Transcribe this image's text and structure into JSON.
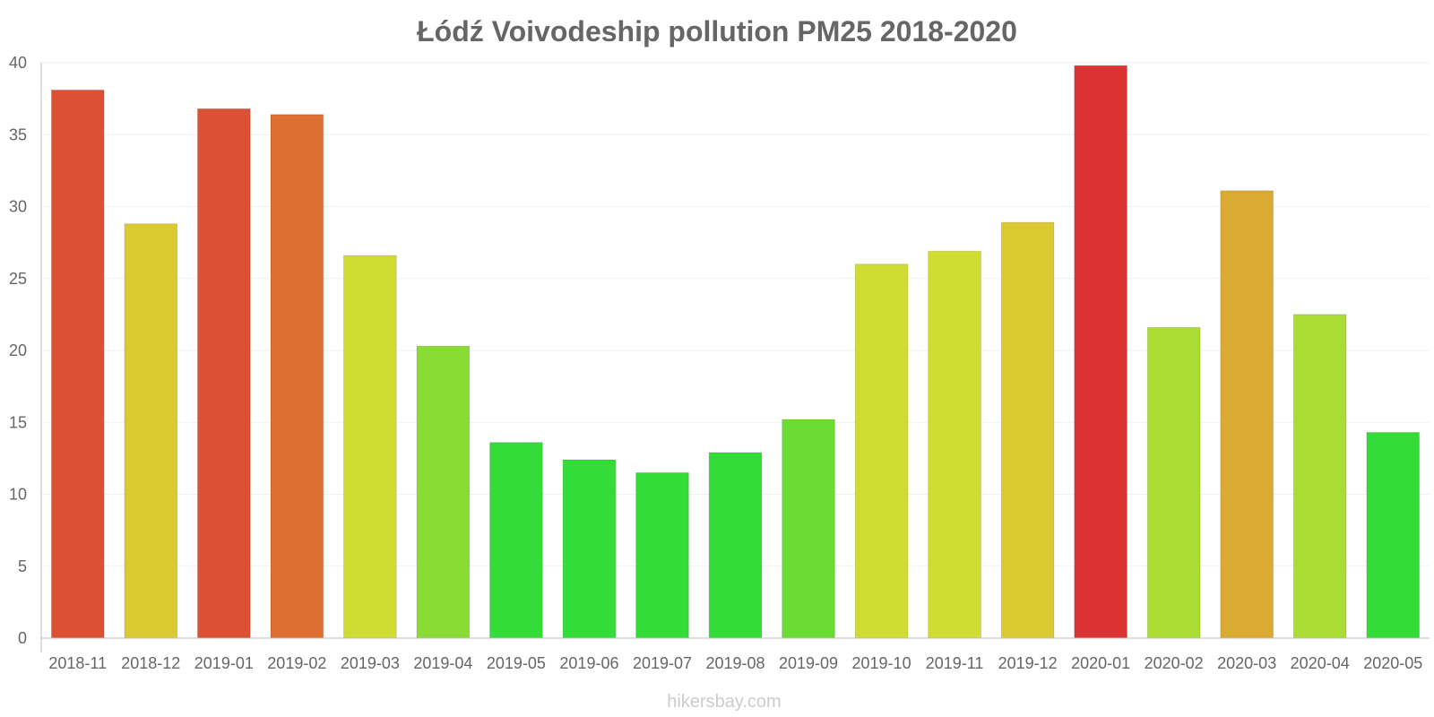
{
  "chart_data": {
    "type": "bar",
    "title": "Łódź Voivodeship pollution PM25 2018-2020",
    "xlabel": "",
    "ylabel": "",
    "ylim": [
      0,
      40
    ],
    "yticks": [
      "0",
      "5",
      "10",
      "15",
      "20",
      "25",
      "30",
      "35",
      "40"
    ],
    "categories": [
      "2018-11",
      "2018-12",
      "2019-01",
      "2019-02",
      "2019-03",
      "2019-04",
      "2019-05",
      "2019-06",
      "2019-07",
      "2019-08",
      "2019-09",
      "2019-10",
      "2019-11",
      "2019-12",
      "2020-01",
      "2020-02",
      "2020-03",
      "2020-04",
      "2020-05"
    ],
    "values": [
      38.1,
      28.8,
      36.8,
      36.4,
      26.6,
      20.3,
      13.6,
      12.4,
      11.5,
      12.9,
      15.2,
      26.0,
      26.9,
      28.9,
      39.8,
      21.6,
      31.1,
      22.5,
      14.3
    ],
    "colors": [
      "#dc5034",
      "#dbc932",
      "#dc5034",
      "#dd6f33",
      "#cfdd33",
      "#89dc33",
      "#33dc38",
      "#33dc38",
      "#33dc38",
      "#33dc38",
      "#6adc33",
      "#cfdd33",
      "#cfdd33",
      "#dbc932",
      "#db3333",
      "#abdc33",
      "#dbaa33",
      "#abdc33",
      "#33dc38"
    ],
    "grid": true,
    "legend": "none"
  },
  "footer": {
    "watermark": "hikersbay.com"
  }
}
